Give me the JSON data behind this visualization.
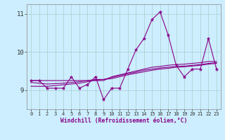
{
  "xlabel": "Windchill (Refroidissement éolien,°C)",
  "background_color": "#cceeff",
  "line_color": "#880088",
  "grid_color": "#aacccc",
  "x_hours": [
    0,
    1,
    2,
    3,
    4,
    5,
    6,
    7,
    8,
    9,
    10,
    11,
    12,
    13,
    14,
    15,
    16,
    17,
    18,
    19,
    20,
    21,
    22,
    23
  ],
  "y_main": [
    9.25,
    9.25,
    9.05,
    9.05,
    9.05,
    9.35,
    9.05,
    9.15,
    9.35,
    8.75,
    9.05,
    9.05,
    9.55,
    10.05,
    10.35,
    10.85,
    11.05,
    10.45,
    9.65,
    9.35,
    9.55,
    9.55,
    10.35,
    9.55
  ],
  "y_trend1": [
    9.25,
    9.25,
    9.25,
    9.25,
    9.25,
    9.25,
    9.25,
    9.25,
    9.25,
    9.25,
    9.35,
    9.4,
    9.45,
    9.5,
    9.55,
    9.6,
    9.62,
    9.65,
    9.67,
    9.68,
    9.7,
    9.72,
    9.75,
    9.75
  ],
  "y_trend2": [
    9.2,
    9.18,
    9.16,
    9.17,
    9.18,
    9.2,
    9.22,
    9.25,
    9.28,
    9.28,
    9.33,
    9.38,
    9.43,
    9.47,
    9.52,
    9.55,
    9.58,
    9.6,
    9.62,
    9.63,
    9.65,
    9.67,
    9.7,
    9.72
  ],
  "y_trend3": [
    9.1,
    9.1,
    9.1,
    9.12,
    9.14,
    9.16,
    9.18,
    9.22,
    9.26,
    9.28,
    9.3,
    9.35,
    9.4,
    9.44,
    9.48,
    9.52,
    9.55,
    9.57,
    9.6,
    9.61,
    9.63,
    9.65,
    9.68,
    9.7
  ],
  "ylim_bottom": 8.5,
  "ylim_top": 11.25,
  "yticks": [
    9,
    10,
    11
  ],
  "xticks": [
    0,
    1,
    2,
    3,
    4,
    5,
    6,
    7,
    8,
    9,
    10,
    11,
    12,
    13,
    14,
    15,
    16,
    17,
    18,
    19,
    20,
    21,
    22,
    23
  ]
}
